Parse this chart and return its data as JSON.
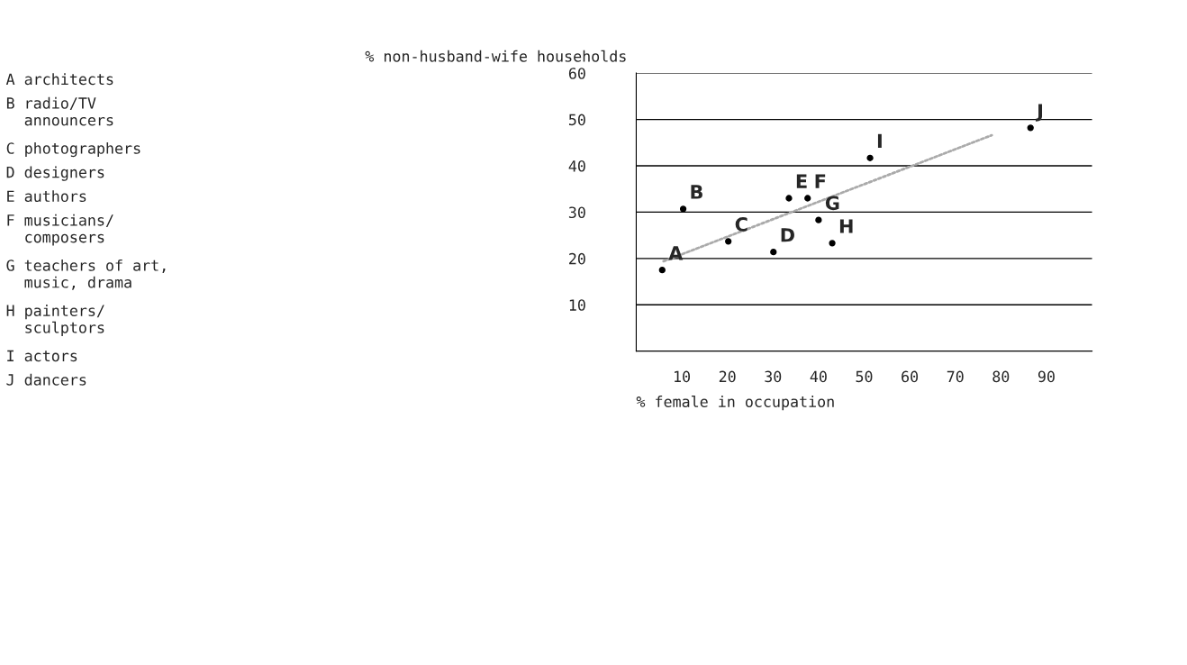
{
  "chart_data": {
    "type": "scatter",
    "ylabel": "% non-husband-wife households",
    "xlabel": "% female in occupation",
    "xlim": [
      0,
      100
    ],
    "ylim": [
      0,
      60
    ],
    "xticks": [
      10,
      20,
      30,
      40,
      50,
      60,
      70,
      80,
      90
    ],
    "yticks": [
      10,
      20,
      30,
      40,
      50,
      60
    ],
    "grid": "y",
    "series": [
      {
        "marker": "circle",
        "color": "#000000",
        "x": [
          5.7,
          10.3,
          20.2,
          30.1,
          33.5,
          37.6,
          40.0,
          43.0,
          51.3,
          86.5
        ],
        "values": [
          17.5,
          30.7,
          23.7,
          21.4,
          33.0,
          33.0,
          28.3,
          23.3,
          41.7,
          48.2
        ]
      },
      {
        "type": "line",
        "color": "#aaaaaa",
        "line_style": "dotted",
        "x": [
          6,
          78
        ],
        "values": [
          19.4,
          46.6
        ]
      }
    ],
    "annotations": [
      {
        "text": "A",
        "x": 5.7,
        "y": 17.5
      },
      {
        "text": "B",
        "x": 10.3,
        "y": 30.7
      },
      {
        "text": "C",
        "x": 20.2,
        "y": 23.7
      },
      {
        "text": "D",
        "x": 30.1,
        "y": 21.4
      },
      {
        "text": "E",
        "x": 33.5,
        "y": 33.0
      },
      {
        "text": "F",
        "x": 37.6,
        "y": 33.0
      },
      {
        "text": "G",
        "x": 40.0,
        "y": 28.3
      },
      {
        "text": "H",
        "x": 43.0,
        "y": 23.3
      },
      {
        "text": "I",
        "x": 51.3,
        "y": 41.7
      },
      {
        "text": "J",
        "x": 86.5,
        "y": 48.2
      },
      "A architects",
      "B radio/TV\n  announcers",
      "C photographers",
      "D designers",
      "E authors",
      "F musicians/\n  composers",
      "G teachers of art,\n  music, drama",
      "H painters/\n  sculptors",
      "I actors",
      "J dancers"
    ]
  }
}
